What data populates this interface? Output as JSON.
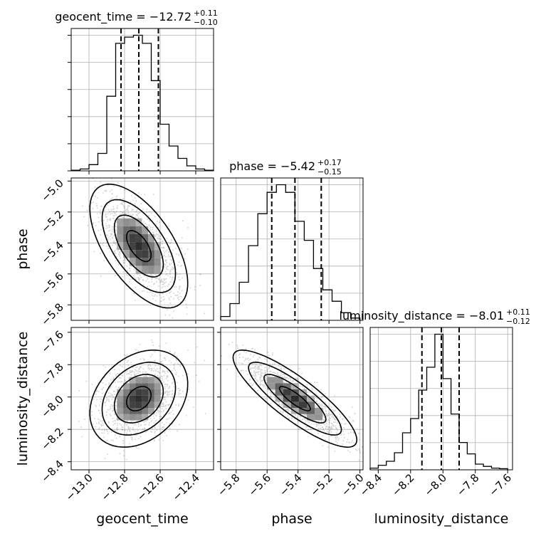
{
  "chart_data": {
    "type": "corner",
    "parameters": [
      "geocent_time",
      "phase",
      "luminosity_distance"
    ],
    "grid": true,
    "axes": {
      "geocent_time": {
        "label": "geocent_time",
        "range": [
          -13.1,
          -12.3
        ],
        "ticks": [
          -13.0,
          -12.8,
          -12.6,
          -12.4
        ],
        "tick_labels": [
          "−13.0",
          "−12.8",
          "−12.6",
          "−12.4"
        ]
      },
      "phase": {
        "label": "phase",
        "range": [
          -5.9,
          -4.98
        ],
        "ticks": [
          -5.8,
          -5.6,
          -5.4,
          -5.2,
          -5.0
        ],
        "tick_labels": [
          "−5.8",
          "−5.6",
          "−5.4",
          "−5.2",
          "−5.0"
        ]
      },
      "luminosity_distance": {
        "label": "luminosity_distance",
        "range": [
          -8.45,
          -7.57
        ],
        "ticks": [
          -8.4,
          -8.2,
          -8.0,
          -7.8,
          -7.6
        ],
        "tick_labels": [
          "−8.4",
          "−8.2",
          "−8.0",
          "−7.8",
          "−7.6"
        ]
      }
    },
    "diagonal": [
      {
        "parameter": "geocent_time",
        "title": {
          "main": "geocent_time = −12.72",
          "sup": "+0.11",
          "sub": "−0.10"
        },
        "quantiles": [
          -12.82,
          -12.72,
          -12.61
        ],
        "bin_edges": [
          -13.1,
          -13.05,
          -13.0,
          -12.95,
          -12.9,
          -12.85,
          -12.8,
          -12.75,
          -12.7,
          -12.65,
          -12.6,
          -12.55,
          -12.5,
          -12.45,
          -12.4,
          -12.35,
          -12.3
        ],
        "counts": [
          1,
          3,
          10,
          28,
          120,
          205,
          215,
          218,
          205,
          145,
          75,
          40,
          20,
          8,
          3,
          1
        ]
      },
      {
        "parameter": "phase",
        "title": {
          "main": "phase = −5.42",
          "sup": "+0.17",
          "sub": "−0.15"
        },
        "quantiles": [
          -5.57,
          -5.42,
          -5.25
        ],
        "bin_edges": [
          -5.9,
          -5.84,
          -5.78,
          -5.72,
          -5.66,
          -5.6,
          -5.54,
          -5.48,
          -5.42,
          -5.36,
          -5.3,
          -5.24,
          -5.18,
          -5.12,
          -5.06,
          -5.0
        ],
        "counts": [
          5,
          22,
          50,
          98,
          140,
          168,
          178,
          168,
          130,
          105,
          68,
          40,
          25,
          10,
          3
        ]
      },
      {
        "parameter": "luminosity_distance",
        "title": {
          "main": "luminosity_distance = −8.01",
          "sup": "+0.11",
          "sub": "−0.12"
        },
        "quantiles": [
          -8.13,
          -8.01,
          -7.9
        ],
        "bin_edges": [
          -8.45,
          -8.4,
          -8.35,
          -8.3,
          -8.25,
          -8.2,
          -8.15,
          -8.1,
          -8.05,
          -8.0,
          -7.95,
          -7.9,
          -7.85,
          -7.8,
          -7.75,
          -7.7,
          -7.65,
          -7.6
        ],
        "counts": [
          3,
          8,
          15,
          30,
          65,
          90,
          140,
          180,
          238,
          160,
          98,
          48,
          28,
          10,
          6,
          3,
          2
        ]
      }
    ],
    "pairs": [
      {
        "x": "geocent_time",
        "y": "phase",
        "mean": [
          -12.72,
          -5.42
        ],
        "std": [
          0.11,
          0.16
        ],
        "correlation": -0.6
      },
      {
        "x": "geocent_time",
        "y": "luminosity_distance",
        "mean": [
          -12.72,
          -8.01
        ],
        "std": [
          0.11,
          0.12
        ],
        "correlation": 0.3
      },
      {
        "x": "phase",
        "y": "luminosity_distance",
        "mean": [
          -5.42,
          -8.01
        ],
        "std": [
          0.16,
          0.12
        ],
        "correlation": -0.85
      }
    ]
  }
}
